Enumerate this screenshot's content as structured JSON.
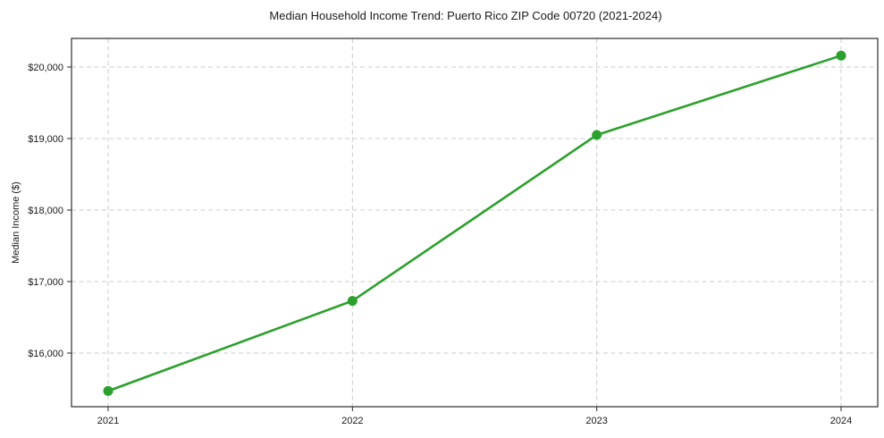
{
  "chart_data": {
    "type": "line",
    "title": "Median Household Income Trend: Puerto Rico ZIP Code 00720 (2021-2024)",
    "xlabel": "",
    "ylabel": "Median Income ($)",
    "x": [
      2021,
      2022,
      2023,
      2024
    ],
    "x_tick_labels": [
      "2021",
      "2022",
      "2023",
      "2024"
    ],
    "series": [
      {
        "name": "Median household income",
        "values": [
          15470,
          16730,
          19050,
          20160
        ],
        "color": "#2ca02c",
        "marker": "circle",
        "marker_radius": 5.5
      }
    ],
    "y_ticks": [
      {
        "value": 16000,
        "label": "$16,000"
      },
      {
        "value": 17000,
        "label": "$17,000"
      },
      {
        "value": 18000,
        "label": "$18,000"
      },
      {
        "value": 19000,
        "label": "$19,000"
      },
      {
        "value": 20000,
        "label": "$20,000"
      }
    ],
    "xlim": [
      2020.85,
      2024.15
    ],
    "ylim": [
      15250,
      20400
    ],
    "grid": true,
    "grid_style": "dashed",
    "legend": "none",
    "colors": {
      "line": "#2ca02c",
      "grid": "#cccccc",
      "spine": "#2b2b2b",
      "text": "#1a1a1a",
      "background": "#ffffff"
    }
  }
}
